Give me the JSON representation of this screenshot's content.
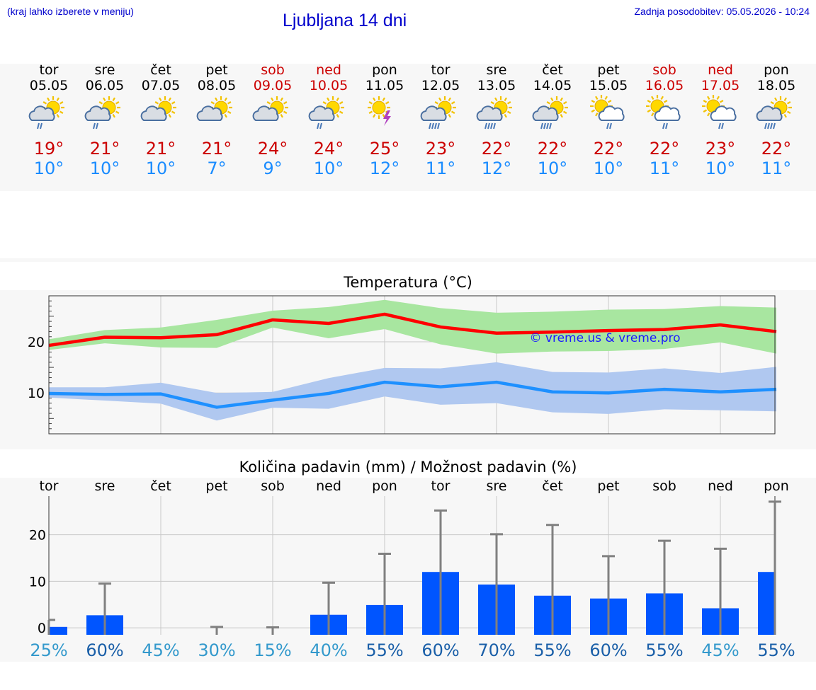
{
  "header": {
    "hint": "(kraj lahko izberete v meniju)",
    "title": "Ljubljana 14 dni",
    "updated": "Zadnja posodobitev: 05.05.2026 - 10:24"
  },
  "days": [
    {
      "name": "tor",
      "date": "05.05",
      "icon": "partly-cloudy-rain-icon",
      "max": "19°",
      "min": "10°",
      "weekend": false
    },
    {
      "name": "sre",
      "date": "06.05",
      "icon": "partly-cloudy-rain-icon",
      "max": "21°",
      "min": "10°",
      "weekend": false
    },
    {
      "name": "čet",
      "date": "07.05",
      "icon": "partly-cloudy-icon",
      "max": "21°",
      "min": "10°",
      "weekend": false
    },
    {
      "name": "pet",
      "date": "08.05",
      "icon": "partly-cloudy-icon",
      "max": "21°",
      "min": "7°",
      "weekend": false
    },
    {
      "name": "sob",
      "date": "09.05",
      "icon": "partly-cloudy-icon",
      "max": "24°",
      "min": "9°",
      "weekend": true
    },
    {
      "name": "ned",
      "date": "10.05",
      "icon": "partly-cloudy-rain-icon",
      "max": "24°",
      "min": "10°",
      "weekend": true
    },
    {
      "name": "pon",
      "date": "11.05",
      "icon": "sun-thunder-icon",
      "max": "25°",
      "min": "12°",
      "weekend": false
    },
    {
      "name": "tor",
      "date": "12.05",
      "icon": "partly-cloudy-heavy-rain-icon",
      "max": "23°",
      "min": "11°",
      "weekend": false
    },
    {
      "name": "sre",
      "date": "13.05",
      "icon": "partly-cloudy-heavy-rain-icon",
      "max": "22°",
      "min": "12°",
      "weekend": false
    },
    {
      "name": "čet",
      "date": "14.05",
      "icon": "partly-cloudy-heavy-rain-icon",
      "max": "22°",
      "min": "10°",
      "weekend": false
    },
    {
      "name": "pet",
      "date": "15.05",
      "icon": "sun-cloud-rain-icon",
      "max": "22°",
      "min": "10°",
      "weekend": false
    },
    {
      "name": "sob",
      "date": "16.05",
      "icon": "sun-cloud-rain-icon",
      "max": "22°",
      "min": "11°",
      "weekend": true
    },
    {
      "name": "ned",
      "date": "17.05",
      "icon": "sun-cloud-rain-icon",
      "max": "23°",
      "min": "10°",
      "weekend": true
    },
    {
      "name": "pon",
      "date": "18.05",
      "icon": "partly-cloudy-heavy-rain-icon",
      "max": "22°",
      "min": "11°",
      "weekend": false
    }
  ],
  "colors": {
    "accent": "#0000cc",
    "max_temp": "#cc0000",
    "min_temp": "#1a8cff",
    "max_line": "#ff0000",
    "max_band": "#a8e6a0",
    "min_line": "#1e90ff",
    "min_band": "#b0c8f0",
    "bar": "#0055ff",
    "whisker": "#808080"
  },
  "chart_data": [
    {
      "type": "line",
      "title": "Temperatura (°C)",
      "watermark": "© vreme.us & vreme.pro",
      "ylim": [
        2,
        29
      ],
      "yticks": [
        10,
        20
      ],
      "x": [
        "05.05",
        "06.05",
        "07.05",
        "08.05",
        "09.05",
        "10.05",
        "11.05",
        "12.05",
        "13.05",
        "14.05",
        "15.05",
        "16.05",
        "17.05",
        "18.05"
      ],
      "series": [
        {
          "values": [
            19.3,
            20.9,
            20.8,
            21.4,
            24.3,
            23.6,
            25.4,
            22.9,
            21.7,
            21.9,
            22.2,
            22.4,
            23.3,
            22.0
          ],
          "band_high": [
            20.5,
            22.3,
            22.8,
            24.3,
            26.1,
            26.8,
            28.2,
            26.6,
            25.7,
            25.9,
            26.3,
            26.4,
            27.0,
            26.7
          ],
          "band_low": [
            18.4,
            19.7,
            18.9,
            18.8,
            22.8,
            20.7,
            22.5,
            19.5,
            17.7,
            18.1,
            18.2,
            18.6,
            19.9,
            17.7
          ]
        },
        {
          "values": [
            9.9,
            9.7,
            9.8,
            7.2,
            8.6,
            9.9,
            12.1,
            11.2,
            12.1,
            10.2,
            10.0,
            10.7,
            10.2,
            10.7
          ],
          "band_high": [
            11.1,
            11.1,
            12.0,
            10.0,
            10.2,
            12.9,
            14.9,
            14.8,
            16.0,
            14.1,
            14.0,
            14.8,
            13.9,
            15.1
          ],
          "band_low": [
            9.1,
            8.5,
            7.9,
            4.6,
            7.1,
            6.9,
            9.3,
            7.7,
            8.0,
            6.2,
            5.9,
            6.8,
            6.6,
            6.4
          ]
        }
      ]
    },
    {
      "type": "bar",
      "title": "Količina padavin (mm) / Možnost padavin (%)",
      "ylim": [
        -1.5,
        28.3
      ],
      "yticks": [
        0,
        10,
        20
      ],
      "categories": [
        "tor",
        "sre",
        "čet",
        "pet",
        "sob",
        "ned",
        "pon",
        "tor",
        "sre",
        "čet",
        "pet",
        "sob",
        "ned",
        "pon"
      ],
      "values": [
        0.2,
        2.7,
        0,
        0,
        0,
        2.8,
        4.9,
        12.0,
        9.3,
        6.9,
        6.3,
        7.4,
        4.2,
        12.0
      ],
      "error_high": [
        1.7,
        9.5,
        0,
        0.2,
        0.1,
        9.7,
        15.9,
        25.2,
        20.1,
        22.1,
        15.4,
        18.7,
        17.0,
        27.1
      ],
      "probability": [
        "25%",
        "60%",
        "45%",
        "30%",
        "15%",
        "40%",
        "55%",
        "60%",
        "70%",
        "55%",
        "60%",
        "55%",
        "45%",
        "55%"
      ],
      "probability_colors": [
        "#3399cc",
        "#1a5fa8",
        "#3399cc",
        "#3399cc",
        "#3399cc",
        "#3399cc",
        "#1a5fa8",
        "#1a5fa8",
        "#1a5fa8",
        "#1a5fa8",
        "#1a5fa8",
        "#1a5fa8",
        "#3399cc",
        "#1a5fa8"
      ]
    }
  ]
}
